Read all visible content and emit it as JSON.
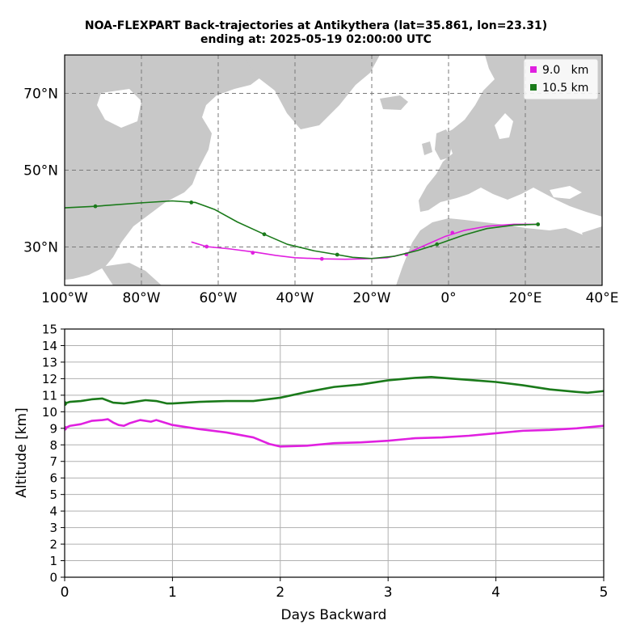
{
  "header": {
    "title_line1": "NOA-FLEXPART Back-trajectories at Antikythera (lat=35.861, lon=23.31)",
    "title_line2": "ending at: 2025-05-19  02:00:00 UTC"
  },
  "colors": {
    "land": "#c8c8c8",
    "ocean": "#ffffff",
    "series_9km": "#e020e0",
    "series_10_5km": "#1a7a1a",
    "grid_map": "#7a7a7a",
    "grid_plot": "#b0b0b0"
  },
  "chart_data": [
    {
      "type": "line",
      "kind": "map-trajectories",
      "title": "NOA-FLEXPART Back-trajectories at Antikythera (lat=35.861, lon=23.31)",
      "xlim": [
        -100,
        40
      ],
      "ylim": [
        20,
        80
      ],
      "x_ticks": [
        -100,
        -80,
        -60,
        -40,
        -20,
        0,
        20,
        40
      ],
      "x_tick_labels": [
        "100°W",
        "80°W",
        "60°W",
        "40°W",
        "20°W",
        "0°",
        "20°E",
        "40°E"
      ],
      "y_ticks": [
        30,
        50,
        70
      ],
      "y_tick_labels": [
        "30°N",
        "50°N",
        "70°N"
      ],
      "grid": true,
      "legend_position": "top-right",
      "series": [
        {
          "name": "9.0   km",
          "color": "#e020e0",
          "lon": [
            23.3,
            17,
            10,
            4,
            -1,
            -6,
            -11,
            -16,
            -22,
            -27,
            -33,
            -40,
            -45,
            -50,
            -57,
            -63,
            -67
          ],
          "lat": [
            35.9,
            35.9,
            35.4,
            34.3,
            32.7,
            30.5,
            28.3,
            27.2,
            26.9,
            26.8,
            26.9,
            27.2,
            27.8,
            28.6,
            29.5,
            30.1,
            31.3
          ],
          "markers_lon": [
            1,
            -11,
            -33,
            -51,
            -63
          ],
          "markers_lat": [
            33.7,
            28.1,
            26.9,
            28.5,
            30.1
          ]
        },
        {
          "name": "10.5 km",
          "color": "#1a7a1a",
          "lon": [
            23.3,
            17,
            10,
            4,
            -2,
            -8,
            -14,
            -20,
            -25,
            -29,
            -35,
            -42,
            -48,
            -55,
            -61,
            -66,
            -72,
            -80,
            -92,
            -100
          ],
          "lat": [
            35.9,
            35.7,
            34.8,
            33.1,
            31.0,
            29.1,
            27.6,
            27.0,
            27.3,
            28.0,
            29.0,
            30.7,
            33.3,
            36.5,
            39.8,
            41.6,
            42.0,
            41.5,
            40.6,
            40.2
          ],
          "markers_lon": [
            23.3,
            -3,
            -29,
            -48,
            -67,
            -92
          ],
          "markers_lat": [
            35.9,
            30.7,
            28.0,
            33.3,
            41.6,
            40.6
          ]
        }
      ]
    },
    {
      "type": "line",
      "xlabel": "Days Backward",
      "ylabel": "Altitude [km]",
      "xlim": [
        0,
        5
      ],
      "ylim": [
        0,
        15
      ],
      "x_ticks": [
        0,
        1,
        2,
        3,
        4,
        5
      ],
      "y_ticks": [
        0,
        1,
        2,
        3,
        4,
        5,
        6,
        7,
        8,
        9,
        10,
        11,
        12,
        13,
        14,
        15
      ],
      "grid": true,
      "series": [
        {
          "name": "9.0   km",
          "color": "#e020e0",
          "x": [
            0,
            0.05,
            0.15,
            0.25,
            0.35,
            0.4,
            0.45,
            0.5,
            0.55,
            0.6,
            0.7,
            0.8,
            0.85,
            0.9,
            1.0,
            1.25,
            1.5,
            1.75,
            1.9,
            2.0,
            2.25,
            2.5,
            2.75,
            3.0,
            3.25,
            3.5,
            3.75,
            4.0,
            4.25,
            4.5,
            4.75,
            5.0
          ],
          "y": [
            9.0,
            9.15,
            9.25,
            9.45,
            9.5,
            9.55,
            9.35,
            9.2,
            9.15,
            9.3,
            9.5,
            9.4,
            9.5,
            9.4,
            9.2,
            8.95,
            8.75,
            8.45,
            8.05,
            7.9,
            7.95,
            8.1,
            8.15,
            8.25,
            8.4,
            8.45,
            8.55,
            8.7,
            8.85,
            8.9,
            9.0,
            9.15
          ]
        },
        {
          "name": "10.5 km",
          "color": "#1a7a1a",
          "x": [
            0,
            0.05,
            0.15,
            0.25,
            0.35,
            0.45,
            0.55,
            0.65,
            0.75,
            0.85,
            0.95,
            1.0,
            1.25,
            1.5,
            1.75,
            2.0,
            2.25,
            2.5,
            2.75,
            3.0,
            3.25,
            3.4,
            3.6,
            3.8,
            4.0,
            4.25,
            4.5,
            4.75,
            4.85,
            5.0
          ],
          "y": [
            10.5,
            10.6,
            10.65,
            10.75,
            10.8,
            10.55,
            10.5,
            10.6,
            10.7,
            10.65,
            10.5,
            10.5,
            10.6,
            10.65,
            10.65,
            10.85,
            11.2,
            11.5,
            11.65,
            11.9,
            12.05,
            12.1,
            12.0,
            11.9,
            11.8,
            11.6,
            11.35,
            11.2,
            11.15,
            11.25
          ]
        }
      ]
    }
  ]
}
